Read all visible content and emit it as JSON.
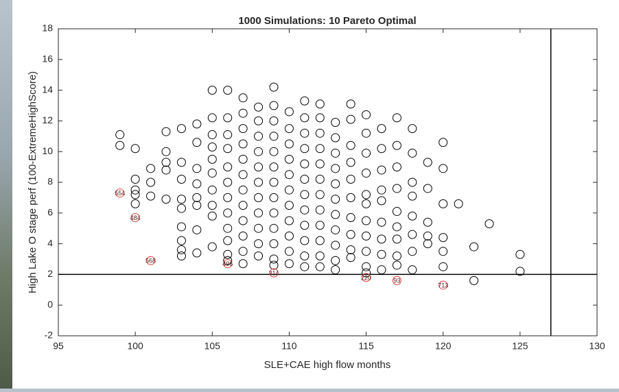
{
  "chart_data": {
    "type": "scatter",
    "title": "1000 Simulations: 10 Pareto Optimal",
    "x_label": "SLE+CAE high flow months",
    "y_label": "High Lake O stage perf (100-ExtremeHighScore)",
    "xlim": [
      95,
      130
    ],
    "xticks": [
      95,
      100,
      105,
      110,
      115,
      120,
      125,
      130
    ],
    "ylim": [
      -2,
      18
    ],
    "yticks": [
      -2,
      0,
      2,
      4,
      6,
      8,
      10,
      12,
      14,
      16,
      18
    ],
    "reference_lines": {
      "y": 2,
      "x": 127
    },
    "series": [
      {
        "color": "#000000",
        "x": [
          99,
          99,
          100,
          100,
          100,
          100,
          100,
          101,
          101,
          101,
          102,
          102,
          102,
          102,
          102,
          103,
          103,
          103,
          103,
          103,
          103,
          103,
          103,
          103,
          104,
          104,
          104,
          104,
          104,
          104,
          104,
          104,
          105,
          105,
          105,
          105,
          105,
          105,
          105,
          105,
          105,
          105,
          106,
          106,
          106,
          106,
          106,
          106,
          106,
          106,
          106,
          106,
          106,
          106,
          107,
          107,
          107,
          107,
          107,
          107,
          107,
          107,
          107,
          107,
          107,
          107,
          108,
          108,
          108,
          108,
          108,
          108,
          108,
          108,
          108,
          108,
          108,
          109,
          109,
          109,
          109,
          109,
          109,
          109,
          109,
          109,
          109,
          109,
          109,
          109,
          110,
          110,
          110,
          110,
          110,
          110,
          110,
          110,
          110,
          110,
          110,
          111,
          111,
          111,
          111,
          111,
          111,
          111,
          111,
          111,
          111,
          111,
          111,
          112,
          112,
          112,
          112,
          112,
          112,
          112,
          112,
          112,
          112,
          112,
          112,
          113,
          113,
          113,
          113,
          113,
          113,
          113,
          113,
          113,
          113,
          113,
          114,
          114,
          114,
          114,
          114,
          114,
          114,
          114,
          114,
          114,
          115,
          115,
          115,
          115,
          115,
          115,
          115,
          115,
          115,
          115,
          115,
          116,
          116,
          116,
          116,
          116,
          116,
          116,
          116,
          116,
          117,
          117,
          117,
          117,
          117,
          117,
          117,
          117,
          117,
          118,
          118,
          118,
          118,
          118,
          118,
          118,
          118,
          119,
          119,
          119,
          119,
          119,
          120,
          120,
          120,
          120,
          120,
          120,
          121,
          122,
          122,
          123,
          125,
          125
        ],
        "values": [
          11.1,
          10.4,
          10.2,
          8.2,
          7.5,
          7.2,
          6.6,
          8.9,
          8.0,
          7.1,
          11.3,
          10.0,
          9.3,
          8.8,
          6.9,
          11.5,
          9.3,
          8.2,
          6.9,
          6.3,
          5.1,
          4.2,
          3.6,
          3.2,
          11.8,
          10.6,
          8.9,
          7.9,
          7.0,
          6.5,
          4.9,
          3.4,
          14.0,
          12.2,
          11.1,
          10.3,
          9.5,
          8.6,
          7.5,
          6.5,
          5.8,
          3.8,
          14.0,
          12.2,
          11.1,
          10.2,
          9.0,
          8.0,
          7.0,
          6.0,
          5.0,
          4.2,
          3.3,
          2.9,
          13.5,
          12.5,
          11.5,
          10.5,
          9.5,
          8.5,
          7.5,
          6.5,
          5.5,
          4.5,
          3.5,
          2.7,
          12.9,
          12.0,
          11.0,
          10.0,
          9.0,
          8.0,
          7.0,
          6.0,
          5.0,
          4.0,
          3.2,
          14.2,
          13.0,
          12.0,
          11.0,
          10.0,
          9.0,
          8.0,
          7.0,
          6.0,
          5.0,
          4.0,
          3.0,
          2.6,
          12.6,
          11.5,
          10.5,
          9.5,
          8.5,
          7.5,
          6.5,
          5.5,
          4.5,
          3.5,
          2.7,
          13.3,
          12.2,
          11.2,
          10.2,
          9.2,
          8.2,
          7.2,
          6.2,
          5.2,
          4.2,
          3.2,
          2.5,
          13.1,
          12.2,
          11.2,
          10.2,
          9.2,
          8.2,
          7.2,
          6.2,
          5.2,
          4.2,
          3.2,
          2.5,
          11.9,
          10.9,
          9.9,
          8.9,
          7.9,
          6.9,
          5.9,
          4.9,
          3.9,
          2.9,
          2.3,
          13.1,
          12.1,
          10.4,
          9.3,
          8.2,
          7.0,
          5.7,
          4.6,
          3.6,
          3.1,
          12.4,
          11.2,
          9.9,
          8.6,
          7.2,
          6.6,
          5.5,
          4.5,
          3.5,
          2.5,
          2.1,
          11.5,
          10.2,
          8.8,
          7.5,
          6.8,
          5.4,
          4.3,
          3.3,
          2.3,
          12.2,
          10.4,
          9.0,
          7.6,
          6.1,
          5.1,
          4.3,
          3.2,
          2.6,
          11.5,
          9.9,
          8.0,
          7.1,
          5.8,
          4.6,
          3.5,
          2.3,
          9.3,
          7.6,
          5.4,
          4.5,
          4.0,
          10.6,
          8.9,
          6.6,
          4.4,
          3.5,
          2.5,
          6.6,
          3.8,
          1.6,
          5.3,
          3.3,
          2.2
        ]
      },
      {
        "color": "#e0403a",
        "x": [
          99,
          100,
          101,
          106,
          109,
          115,
          117,
          120
        ],
        "values": [
          7.3,
          5.7,
          2.9,
          2.7,
          2.1,
          1.8,
          1.6,
          1.3
        ],
        "point_labels": [
          "554",
          "484",
          "568",
          "496",
          "314",
          "220",
          "93",
          "713"
        ]
      }
    ]
  }
}
